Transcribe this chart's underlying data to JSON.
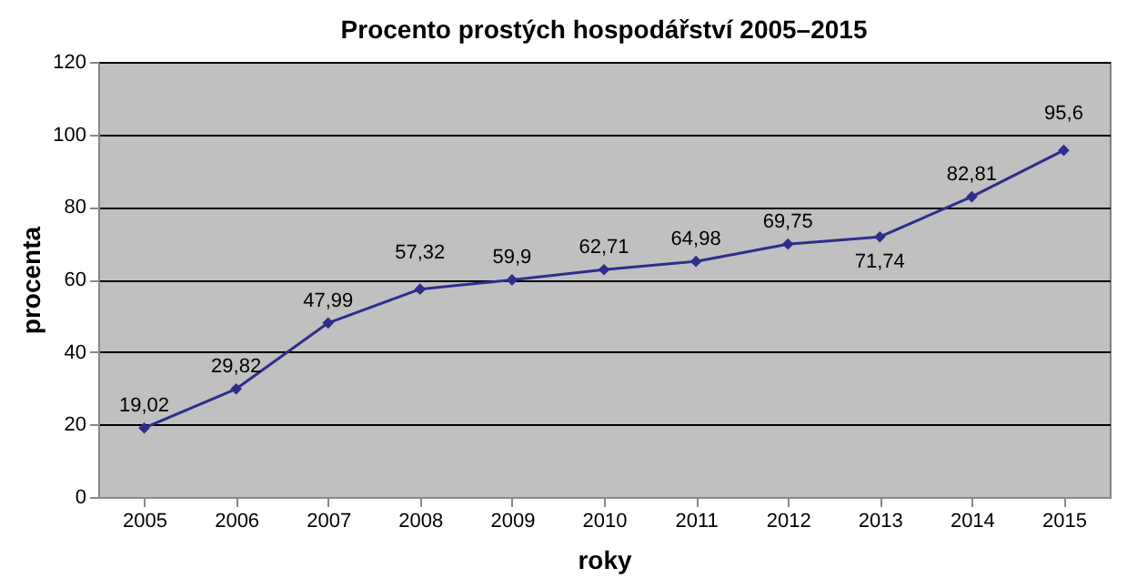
{
  "chart_data": {
    "type": "line",
    "title": "Procento prostých hospodářství 2005–2015",
    "xlabel": "roky",
    "ylabel": "procenta",
    "categories": [
      "2005",
      "2006",
      "2007",
      "2008",
      "2009",
      "2010",
      "2011",
      "2012",
      "2013",
      "2014",
      "2015"
    ],
    "series": [
      {
        "color": "#2e2e8c",
        "values": [
          19.02,
          29.82,
          47.99,
          57.32,
          59.9,
          62.71,
          64.98,
          69.75,
          71.74,
          82.81,
          95.6
        ],
        "value_labels": [
          "19,02",
          "29,82",
          "47,99",
          "57,32",
          "59,9",
          "62,71",
          "64,98",
          "69,75",
          "71,74",
          "82,81",
          "95,6"
        ]
      }
    ],
    "ylim": [
      0,
      120
    ],
    "yticks": [
      0,
      20,
      40,
      60,
      80,
      100,
      120
    ],
    "grid": "y",
    "marker": "diamond",
    "line_style": "solid"
  }
}
